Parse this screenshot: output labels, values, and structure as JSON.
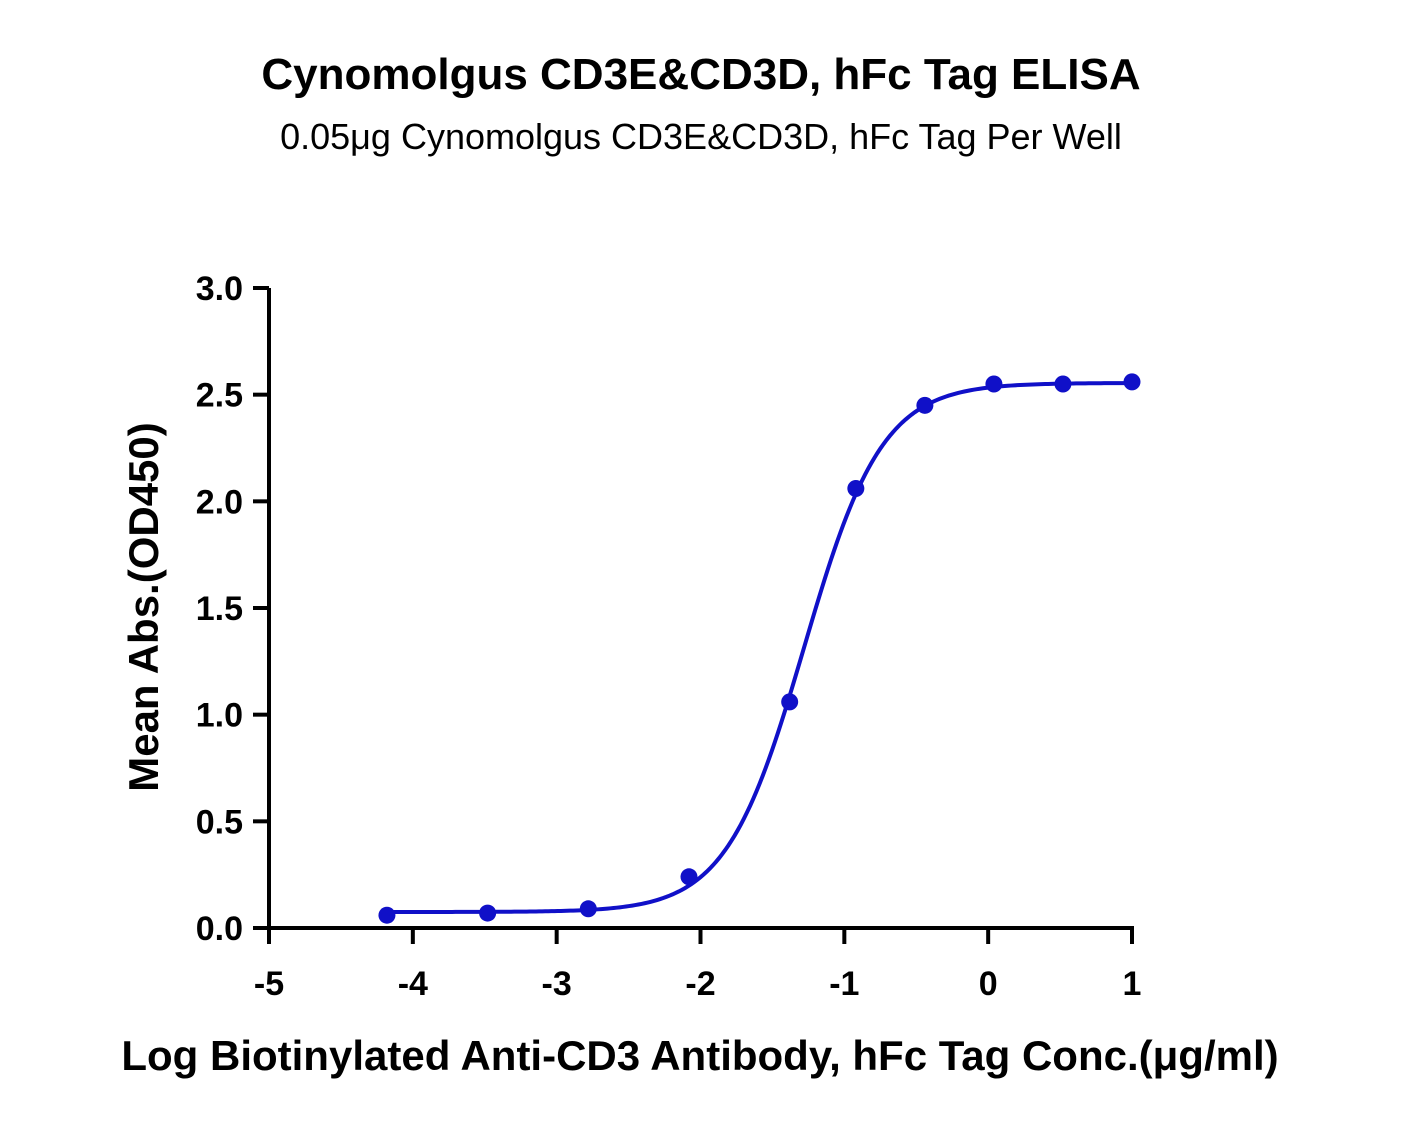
{
  "chart_data": {
    "type": "scatter",
    "title": "Cynomolgus CD3E&CD3D, hFc Tag ELISA",
    "subtitle": "0.05μg Cynomolgus CD3E&CD3D, hFc Tag Per Well",
    "xlabel": "Log Biotinylated Anti-CD3 Antibody, hFc Tag Conc.(μg/ml)",
    "ylabel": "Mean Abs.(OD450)",
    "xlim": [
      -5,
      1
    ],
    "ylim": [
      0,
      3.0
    ],
    "x_ticks": [
      "-5",
      "-4",
      "-3",
      "-2",
      "-1",
      "0",
      "1"
    ],
    "y_ticks": [
      "0.0",
      "0.5",
      "1.0",
      "1.5",
      "2.0",
      "2.5",
      "3.0"
    ],
    "grid": false,
    "series": [
      {
        "color": "#1010c8",
        "x": [
          -4.18,
          -3.48,
          -2.78,
          -2.08,
          -1.38,
          -0.92,
          -0.44,
          0.04,
          0.52,
          1.0
        ],
        "y": [
          0.06,
          0.07,
          0.09,
          0.24,
          1.06,
          2.06,
          2.45,
          2.55,
          2.55,
          2.56
        ],
        "fit": {
          "model": "4PL",
          "bottom": 0.075,
          "top": 2.555,
          "logEC50": -1.28,
          "hill": 1.6
        }
      }
    ]
  }
}
